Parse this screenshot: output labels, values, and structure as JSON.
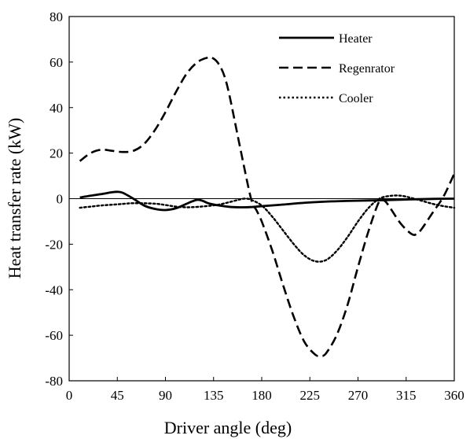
{
  "chart_data": {
    "type": "line",
    "title": "",
    "xlabel": "Driver angle (deg)",
    "ylabel": "Heat transfer rate (kW)",
    "xlim": [
      0,
      360
    ],
    "ylim": [
      -80,
      80
    ],
    "xticks": [
      0,
      45,
      90,
      135,
      180,
      225,
      270,
      315,
      360
    ],
    "yticks": [
      -80,
      -60,
      -40,
      -20,
      0,
      20,
      40,
      60,
      80
    ],
    "grid": false,
    "legend_position": "top-right",
    "series": [
      {
        "name": "Heater",
        "style": "solid",
        "color": "#000000",
        "x": [
          10,
          20,
          30,
          40,
          45,
          50,
          60,
          70,
          80,
          90,
          100,
          110,
          115,
          120,
          125,
          130,
          140,
          150,
          160,
          170,
          180,
          200,
          220,
          240,
          260,
          280,
          300,
          320,
          340,
          360
        ],
        "y": [
          0.5,
          1.3,
          2.0,
          2.8,
          3.0,
          2.6,
          0,
          -3.0,
          -4.5,
          -5.0,
          -4.2,
          -2.2,
          -1.2,
          -0.5,
          -1.0,
          -2.0,
          -3.0,
          -3.6,
          -3.8,
          -3.7,
          -3.3,
          -2.6,
          -1.8,
          -1.3,
          -1.0,
          -0.8,
          -0.6,
          -0.3,
          -0.1,
          0
        ]
      },
      {
        "name": "Regenrator",
        "style": "dashed",
        "color": "#000000",
        "x": [
          10,
          20,
          30,
          40,
          50,
          60,
          70,
          80,
          90,
          100,
          110,
          120,
          130,
          135,
          140,
          145,
          150,
          160,
          170,
          175,
          180,
          190,
          200,
          210,
          220,
          230,
          235,
          240,
          250,
          260,
          270,
          280,
          290,
          295,
          300,
          310,
          320,
          325,
          330,
          340,
          350,
          360
        ],
        "y": [
          16.5,
          20,
          21.5,
          21,
          20.5,
          21,
          24,
          30,
          38,
          47,
          55,
          60,
          62,
          61.5,
          59,
          54,
          45,
          22,
          0,
          -5,
          -10,
          -23,
          -38,
          -52,
          -63,
          -68.5,
          -69,
          -68,
          -60,
          -47,
          -30,
          -14,
          -1,
          -1,
          -4,
          -11,
          -15.5,
          -15.5,
          -13,
          -6,
          1,
          11
        ]
      },
      {
        "name": "Cooler",
        "style": "dotted",
        "color": "#000000",
        "x": [
          10,
          20,
          30,
          45,
          60,
          80,
          90,
          100,
          110,
          120,
          130,
          140,
          150,
          160,
          165,
          170,
          180,
          190,
          200,
          210,
          220,
          230,
          240,
          250,
          260,
          270,
          280,
          290,
          300,
          310,
          320,
          330,
          340,
          350,
          360
        ],
        "y": [
          -4,
          -3.5,
          -3,
          -2.5,
          -2,
          -2.2,
          -2.8,
          -3.5,
          -3.8,
          -3.6,
          -3.2,
          -2.6,
          -1.5,
          -0.3,
          0,
          -0.5,
          -3,
          -8,
          -14,
          -20,
          -25,
          -27.5,
          -27,
          -23,
          -17,
          -10,
          -4,
          0,
          1.2,
          1.3,
          0.3,
          -1,
          -2.3,
          -3.3,
          -4
        ]
      }
    ]
  }
}
